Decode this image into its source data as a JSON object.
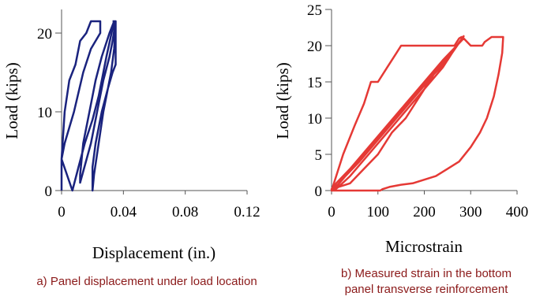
{
  "chart_data": [
    {
      "type": "line",
      "xlabel": "Displacement (in.)",
      "ylabel": "Load (kips)",
      "xlim": [
        0,
        0.12
      ],
      "ylim": [
        0,
        23
      ],
      "xticks": [
        0,
        0.04,
        0.08,
        0.12
      ],
      "xtick_labels": [
        "0",
        "0.04",
        "0.08",
        "0.12"
      ],
      "yticks": [
        0,
        10,
        20
      ],
      "ytick_labels": [
        "0",
        "10",
        "20"
      ],
      "caption": "a) Panel displacement under load location",
      "series": [
        {
          "color": "#1a237e",
          "x": [
            0,
            0,
            0.002,
            0.005,
            0.009,
            0.012,
            0.016,
            0.019,
            0.021,
            0.025,
            0.025,
            0.019,
            0.014,
            0.008,
            0.002,
            0,
            0.007,
            0.011,
            0.015,
            0.02,
            0.024,
            0.027,
            0.029,
            0.034,
            0.034,
            0.031,
            0.026,
            0.022,
            0.018,
            0.014,
            0.012,
            0.012,
            0.019,
            0.023,
            0.027,
            0.031,
            0.033,
            0.035,
            0.035,
            0.034,
            0.032,
            0.027,
            0.024,
            0.021,
            0.02,
            0.02,
            0.02,
            0.022,
            0.026,
            0.03,
            0.033,
            0.035,
            0.035,
            0.035,
            0.033
          ],
          "y": [
            0,
            4,
            10,
            14,
            16,
            19,
            20,
            21.5,
            21.5,
            21.5,
            20,
            18,
            15,
            10,
            6,
            4,
            0,
            3,
            6,
            9,
            12,
            15,
            17,
            21.5,
            21.5,
            20,
            17,
            14,
            10,
            6,
            2,
            1,
            6,
            10,
            14,
            17,
            19,
            21.5,
            21.5,
            18,
            15,
            10,
            6,
            2,
            0,
            0,
            3,
            6,
            10,
            13,
            15,
            16,
            19,
            21.5,
            21.5
          ]
        }
      ]
    },
    {
      "type": "line",
      "xlabel": "Microstrain",
      "ylabel": "Load (kips)",
      "xlim": [
        0,
        400
      ],
      "ylim": [
        0,
        25
      ],
      "xticks": [
        0,
        100,
        200,
        300,
        400
      ],
      "xtick_labels": [
        "0",
        "100",
        "200",
        "300",
        "400"
      ],
      "yticks": [
        0,
        5,
        10,
        15,
        20,
        25
      ],
      "ytick_labels": [
        "0",
        "5",
        "10",
        "15",
        "20",
        "25"
      ],
      "caption_lines": [
        "b) Measured strain in the bottom",
        "panel transverse reinforcement"
      ],
      "series": [
        {
          "color": "#e53935",
          "x": [
            0,
            10,
            25,
            50,
            70,
            85,
            100,
            120,
            140,
            150,
            180,
            220,
            250,
            265,
            270,
            275,
            280,
            283,
            285,
            270,
            250,
            220,
            190,
            160,
            130,
            100,
            70,
            40,
            15,
            5,
            0,
            10,
            40,
            80,
            120,
            160,
            200,
            240,
            270,
            285,
            270,
            240,
            200,
            160,
            120,
            80,
            40,
            10,
            0,
            5,
            30,
            60,
            100,
            140,
            180,
            220,
            260,
            285,
            270,
            240,
            200,
            160,
            120,
            80,
            40,
            15,
            10,
            30,
            70,
            110,
            150,
            190,
            230,
            270,
            285,
            300,
            315,
            320,
            325,
            330,
            345,
            355,
            360,
            370,
            368,
            360,
            350,
            335,
            320,
            300,
            275,
            250,
            225,
            200,
            175,
            150,
            125,
            110,
            105,
            0
          ],
          "y": [
            0,
            2,
            5,
            9,
            12,
            15,
            15,
            17,
            19,
            20,
            20,
            20,
            20,
            20,
            20.5,
            21,
            21.2,
            21.2,
            21,
            20,
            18,
            16,
            13,
            10,
            8,
            5,
            3,
            1,
            0.5,
            0,
            0,
            1,
            3,
            6,
            9,
            12,
            15,
            18,
            20,
            21.3,
            20,
            18,
            15,
            12,
            9,
            6,
            3,
            1,
            0.2,
            0.2,
            2,
            4,
            7,
            10,
            13,
            16,
            19,
            21.3,
            20,
            17,
            14,
            11,
            8,
            5,
            2,
            0.5,
            0.5,
            2,
            5,
            8,
            11,
            14,
            17,
            20,
            21,
            20,
            20,
            20,
            20,
            20.5,
            21.2,
            21.2,
            21.2,
            21.2,
            19,
            16,
            13,
            10,
            8,
            6,
            4,
            3,
            2,
            1.5,
            1,
            0.8,
            0.5,
            0.2,
            0,
            0
          ]
        }
      ]
    }
  ]
}
